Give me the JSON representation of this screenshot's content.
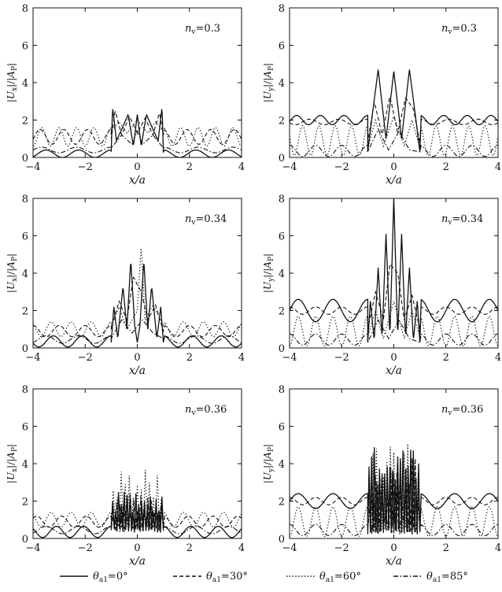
{
  "legend": [
    {
      "name": "θa1=0°",
      "style": "solid"
    },
    {
      "name": "θa1=30°",
      "style": "dashed"
    },
    {
      "name": "θa1=60°",
      "style": "dotted"
    },
    {
      "name": "θa1=85°",
      "style": "dashdot"
    }
  ],
  "chart_data": [
    {
      "type": "line",
      "xlabel": "x/a",
      "ylabel": "|Ux|/|AP|",
      "annotation": "nv=0.3",
      "xlim": [
        -4,
        4
      ],
      "ylim": [
        0,
        8
      ],
      "xticks": [
        -4,
        -2,
        0,
        2,
        4
      ],
      "yticks": [
        0,
        2,
        4,
        6,
        8
      ],
      "series": [
        {
          "name": "θa1=0°",
          "style": "solid",
          "outside": {
            "b": 0.2,
            "A": 0.2,
            "w": 1.6
          },
          "inside": [
            [
              -1,
              0.3
            ],
            [
              -0.95,
              2.7
            ],
            [
              -0.8,
              0.9
            ],
            [
              -0.6,
              1.5
            ],
            [
              -0.35,
              2.3
            ],
            [
              -0.15,
              0.6
            ],
            [
              0,
              2.3
            ],
            [
              0.15,
              0.6
            ],
            [
              0.35,
              2.3
            ],
            [
              0.6,
              1.5
            ],
            [
              0.8,
              0.9
            ],
            [
              0.95,
              2.7
            ],
            [
              1,
              0.3
            ]
          ]
        },
        {
          "name": "θa1=30°",
          "style": "dashed",
          "outside": {
            "b": 1.1,
            "A": 0.4,
            "w": 2.2
          },
          "inside": [
            [
              -1,
              1.0
            ],
            [
              -0.85,
              2.5
            ],
            [
              -0.6,
              1.2
            ],
            [
              -0.3,
              2.2
            ],
            [
              0,
              1.3
            ],
            [
              0.3,
              2.1
            ],
            [
              0.6,
              1.2
            ],
            [
              0.85,
              2.4
            ],
            [
              1,
              1.2
            ]
          ]
        },
        {
          "name": "θa1=60°",
          "style": "dotted",
          "outside": {
            "b": 1.1,
            "A": 0.5,
            "w": 3.0
          },
          "inside": [
            [
              -1,
              1.4
            ],
            [
              -0.7,
              1.9
            ],
            [
              -0.4,
              1.3
            ],
            [
              0,
              2.0
            ],
            [
              0.4,
              1.3
            ],
            [
              0.7,
              1.9
            ],
            [
              1,
              1.4
            ]
          ]
        },
        {
          "name": "θa1=85°",
          "style": "dashdot",
          "outside": {
            "b": 0.4,
            "A": 0.15,
            "w": 1.5
          },
          "inside": [
            [
              -1,
              0.5
            ],
            [
              -0.6,
              1.2
            ],
            [
              -0.2,
              0.7
            ],
            [
              0,
              1.4
            ],
            [
              0.2,
              0.7
            ],
            [
              0.6,
              1.2
            ],
            [
              1,
              0.5
            ]
          ]
        }
      ]
    },
    {
      "type": "line",
      "xlabel": "x/a",
      "ylabel": "|Uy|/|AP|",
      "annotation": "nv=0.3",
      "xlim": [
        -4,
        4
      ],
      "ylim": [
        0,
        8
      ],
      "xticks": [
        -4,
        -2,
        0,
        2,
        4
      ],
      "yticks": [
        0,
        2,
        4,
        6,
        8
      ],
      "series": [
        {
          "name": "θa1=0°",
          "style": "solid",
          "outside": {
            "b": 2.0,
            "A": 0.25,
            "w": 2.2
          },
          "inside": [
            [
              -1,
              0.3
            ],
            [
              -0.85,
              2.0
            ],
            [
              -0.6,
              4.7
            ],
            [
              -0.3,
              1.0
            ],
            [
              0,
              4.6
            ],
            [
              0.3,
              1.0
            ],
            [
              0.6,
              4.7
            ],
            [
              0.85,
              2.0
            ],
            [
              1,
              0.3
            ]
          ]
        },
        {
          "name": "θa1=30°",
          "style": "dashed",
          "outside": {
            "b": 1.9,
            "A": 0.15,
            "w": 1.8
          },
          "inside": [
            [
              -1,
              0.8
            ],
            [
              -0.75,
              3.0
            ],
            [
              -0.45,
              1.2
            ],
            [
              -0.15,
              3.3
            ],
            [
              0.15,
              1.3
            ],
            [
              0.45,
              3.2
            ],
            [
              0.75,
              2.6
            ],
            [
              1,
              0.8
            ]
          ]
        },
        {
          "name": "θa1=60°",
          "style": "dotted",
          "outside": {
            "b": 0.9,
            "A": 0.8,
            "w": 3.2
          },
          "inside": [
            [
              -1,
              0.5
            ],
            [
              -0.7,
              2.0
            ],
            [
              -0.4,
              0.6
            ],
            [
              0,
              2.2
            ],
            [
              0.4,
              0.6
            ],
            [
              0.7,
              2.0
            ],
            [
              1,
              0.5
            ]
          ]
        },
        {
          "name": "θa1=85°",
          "style": "dashdot",
          "outside": {
            "b": 0.35,
            "A": 0.3,
            "w": 2.0
          },
          "inside": [
            [
              -1,
              0.3
            ],
            [
              -0.6,
              1.5
            ],
            [
              -0.2,
              0.4
            ],
            [
              0.2,
              1.4
            ],
            [
              0.6,
              0.4
            ],
            [
              1,
              0.3
            ]
          ]
        }
      ]
    },
    {
      "type": "line",
      "xlabel": "x/a",
      "ylabel": "|Ux|/|AP|",
      "annotation": "nv=0.34",
      "xlim": [
        -4,
        4
      ],
      "ylim": [
        0,
        8
      ],
      "xticks": [
        -4,
        -2,
        0,
        2,
        4
      ],
      "yticks": [
        0,
        2,
        4,
        6,
        8
      ],
      "series": [
        {
          "name": "θa1=0°",
          "style": "solid",
          "outside": {
            "b": 0.35,
            "A": 0.3,
            "w": 1.8
          },
          "inside": [
            [
              -1,
              0.3
            ],
            [
              -0.9,
              2.2
            ],
            [
              -0.75,
              0.5
            ],
            [
              -0.55,
              3.3
            ],
            [
              -0.4,
              1.0
            ],
            [
              -0.25,
              4.7
            ],
            [
              -0.1,
              1.2
            ],
            [
              0.0,
              0.3
            ],
            [
              0.1,
              1.2
            ],
            [
              0.25,
              4.7
            ],
            [
              0.4,
              1.0
            ],
            [
              0.55,
              3.3
            ],
            [
              0.75,
              0.5
            ],
            [
              0.9,
              2.2
            ],
            [
              1,
              0.3
            ]
          ]
        },
        {
          "name": "θa1=30°",
          "style": "dashed",
          "outside": {
            "b": 0.9,
            "A": 0.3,
            "w": 2.0
          },
          "inside": [
            [
              -1,
              1.0
            ],
            [
              -0.7,
              2.5
            ],
            [
              -0.4,
              1.5
            ],
            [
              -0.15,
              3.8
            ],
            [
              0.15,
              3.0
            ],
            [
              0.4,
              1.5
            ],
            [
              0.7,
              2.3
            ],
            [
              1,
              0.9
            ]
          ]
        },
        {
          "name": "θa1=60°",
          "style": "dotted",
          "outside": {
            "b": 1.0,
            "A": 0.4,
            "w": 2.6
          },
          "inside": [
            [
              -1,
              1.2
            ],
            [
              -0.7,
              2.2
            ],
            [
              -0.4,
              1.0
            ],
            [
              0,
              2.0
            ],
            [
              0.15,
              5.5
            ],
            [
              0.3,
              1.5
            ],
            [
              0.6,
              2.3
            ],
            [
              1,
              1.2
            ]
          ]
        },
        {
          "name": "θa1=85°",
          "style": "dashdot",
          "outside": {
            "b": 0.45,
            "A": 0.2,
            "w": 1.6
          },
          "inside": [
            [
              -1,
              0.5
            ],
            [
              -0.6,
              1.5
            ],
            [
              -0.2,
              0.8
            ],
            [
              0.2,
              1.5
            ],
            [
              0.6,
              0.8
            ],
            [
              1,
              0.5
            ]
          ]
        }
      ]
    },
    {
      "type": "line",
      "xlabel": "x/a",
      "ylabel": "|Uy|/|AP|",
      "annotation": "nv=0.34",
      "xlim": [
        -4,
        4
      ],
      "ylim": [
        0,
        8
      ],
      "xticks": [
        -4,
        -2,
        0,
        2,
        4
      ],
      "yticks": [
        0,
        2,
        4,
        6,
        8
      ],
      "series": [
        {
          "name": "θa1=0°",
          "style": "solid",
          "outside": {
            "b": 2.0,
            "A": 0.6,
            "w": 1.5
          },
          "inside": [
            [
              -1,
              0.3
            ],
            [
              -0.9,
              2.5
            ],
            [
              -0.75,
              0.4
            ],
            [
              -0.6,
              4.3
            ],
            [
              -0.45,
              0.5
            ],
            [
              -0.3,
              6.1
            ],
            [
              -0.15,
              0.6
            ],
            [
              0,
              8.0
            ],
            [
              0.15,
              0.6
            ],
            [
              0.3,
              6.1
            ],
            [
              0.45,
              0.5
            ],
            [
              0.6,
              4.3
            ],
            [
              0.75,
              0.4
            ],
            [
              0.9,
              2.5
            ],
            [
              1,
              0.3
            ]
          ]
        },
        {
          "name": "θa1=30°",
          "style": "dashed",
          "outside": {
            "b": 2.0,
            "A": 0.2,
            "w": 2.0
          },
          "inside": [
            [
              -1,
              1.0
            ],
            [
              -0.7,
              3.0
            ],
            [
              -0.4,
              1.5
            ],
            [
              -0.15,
              4.5
            ],
            [
              0.15,
              4.0
            ],
            [
              0.4,
              1.5
            ],
            [
              0.7,
              2.8
            ],
            [
              1,
              1.0
            ]
          ]
        },
        {
          "name": "θa1=60°",
          "style": "dotted",
          "outside": {
            "b": 0.9,
            "A": 0.8,
            "w": 3.0
          },
          "inside": [
            [
              -1,
              0.6
            ],
            [
              -0.7,
              2.0
            ],
            [
              -0.4,
              0.5
            ],
            [
              0,
              2.5
            ],
            [
              0.4,
              0.5
            ],
            [
              0.7,
              2.0
            ],
            [
              1,
              0.6
            ]
          ]
        },
        {
          "name": "θa1=85°",
          "style": "dashdot",
          "outside": {
            "b": 0.45,
            "A": 0.3,
            "w": 2.0
          },
          "inside": [
            [
              -1,
              0.3
            ],
            [
              -0.6,
              1.5
            ],
            [
              -0.2,
              0.5
            ],
            [
              0.2,
              1.5
            ],
            [
              0.6,
              0.5
            ],
            [
              1,
              0.3
            ]
          ]
        }
      ]
    },
    {
      "type": "line",
      "xlabel": "x/a",
      "ylabel": "|Ux|/|AP|",
      "annotation": "nv=0.36",
      "xlim": [
        -4,
        4
      ],
      "ylim": [
        0,
        8
      ],
      "xticks": [
        -4,
        -2,
        0,
        2,
        4
      ],
      "yticks": [
        0,
        2,
        4,
        6,
        8
      ],
      "series": [
        {
          "name": "θa1=0°",
          "style": "solid",
          "outside": {
            "b": 0.35,
            "A": 0.3,
            "w": 1.9
          },
          "inside": {
            "osc": [
              0.3,
              2.5
            ],
            "n": 36
          }
        },
        {
          "name": "θa1=30°",
          "style": "dashed",
          "outside": {
            "b": 0.9,
            "A": 0.3,
            "w": 2.1
          },
          "inside": {
            "osc": [
              0.4,
              2.4
            ],
            "n": 30
          }
        },
        {
          "name": "θa1=60°",
          "style": "dotted",
          "outside": {
            "b": 1.0,
            "A": 0.4,
            "w": 2.6
          },
          "inside": {
            "osc": [
              0.5,
              3.8
            ],
            "n": 26
          }
        },
        {
          "name": "θa1=85°",
          "style": "dashdot",
          "outside": {
            "b": 0.45,
            "A": 0.2,
            "w": 1.6
          },
          "inside": {
            "osc": [
              0.3,
              2.0
            ],
            "n": 24
          }
        }
      ]
    },
    {
      "type": "line",
      "xlabel": "x/a",
      "ylabel": "|Uy|/|AP|",
      "annotation": "nv=0.36",
      "xlim": [
        -4,
        4
      ],
      "ylim": [
        0,
        8
      ],
      "xticks": [
        -4,
        -2,
        0,
        2,
        4
      ],
      "yticks": [
        0,
        2,
        4,
        6,
        8
      ],
      "series": [
        {
          "name": "θa1=0°",
          "style": "solid",
          "outside": {
            "b": 2.0,
            "A": 0.4,
            "w": 1.5
          },
          "inside": {
            "osc": [
              0.2,
              5.0
            ],
            "n": 40
          }
        },
        {
          "name": "θa1=30°",
          "style": "dashed",
          "outside": {
            "b": 2.0,
            "A": 0.2,
            "w": 2.0
          },
          "inside": {
            "osc": [
              0.3,
              4.6
            ],
            "n": 34
          }
        },
        {
          "name": "θa1=60°",
          "style": "dotted",
          "outside": {
            "b": 0.9,
            "A": 0.8,
            "w": 3.0
          },
          "inside": {
            "osc": [
              0.3,
              5.2
            ],
            "n": 30
          }
        },
        {
          "name": "θa1=85°",
          "style": "dashdot",
          "outside": {
            "b": 0.45,
            "A": 0.3,
            "w": 2.0
          },
          "inside": {
            "osc": [
              0.2,
              3.0
            ],
            "n": 26
          }
        }
      ]
    }
  ]
}
